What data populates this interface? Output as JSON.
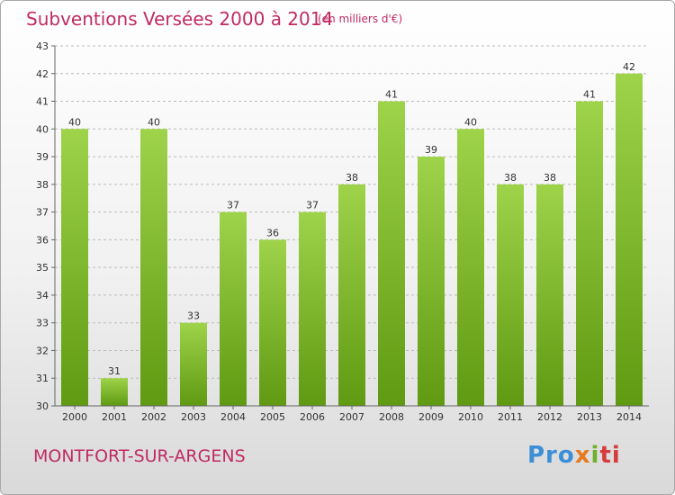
{
  "title": "Subventions Versées 2000 à 2014",
  "subtitle": "(en milliers d'€)",
  "place": "MONTFORT-SUR-ARGENS",
  "logo": {
    "parts": [
      "Pro",
      "x",
      "i",
      "ti"
    ]
  },
  "colors": {
    "title": "#c02a63",
    "bar_light": "#9ed34a",
    "bar_dark": "#5f9a12",
    "grid": "#bbbbbb"
  },
  "chart_data": {
    "type": "bar",
    "categories": [
      "2000",
      "2001",
      "2002",
      "2003",
      "2004",
      "2005",
      "2006",
      "2007",
      "2008",
      "2009",
      "2010",
      "2011",
      "2012",
      "2013",
      "2014"
    ],
    "values": [
      40,
      31,
      40,
      33,
      37,
      36,
      37,
      38,
      41,
      39,
      40,
      38,
      38,
      41,
      42
    ],
    "y_ticks": [
      30,
      31,
      32,
      33,
      34,
      35,
      36,
      37,
      38,
      39,
      40,
      41,
      42,
      43
    ],
    "ylim": [
      30,
      43
    ],
    "grid": true,
    "grid_style": "dashed horizontal"
  }
}
